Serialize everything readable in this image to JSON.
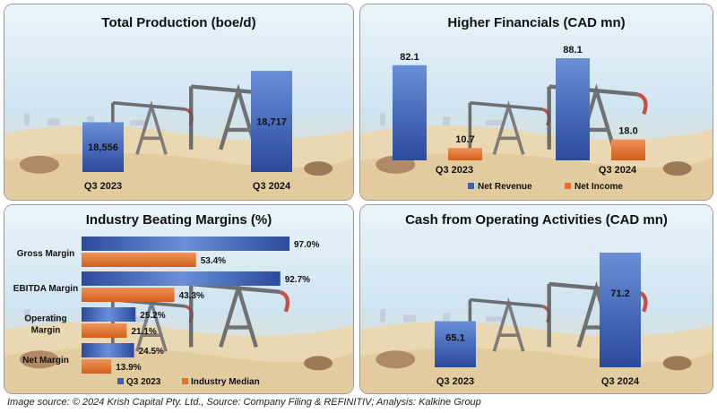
{
  "colors": {
    "blue": "#3d5fae",
    "blue_dark": "#2a4590",
    "orange": "#e0722c",
    "panel_bg": "#cfe3f1"
  },
  "panels": {
    "p1": {
      "title": "Total Production (boe/d)"
    },
    "p2": {
      "title": "Higher Financials (CAD mn)"
    },
    "p3": {
      "title": "Industry Beating Margins (%)"
    },
    "p4": {
      "title": "Cash from Operating Activities (CAD mn)"
    }
  },
  "footer": "Image source: © 2024 Krish Capital Pty. Ltd., Source: Company Filing & REFINITIV; Analysis: Kalkine Group",
  "chart_data": [
    {
      "type": "bar",
      "title": "Total Production (boe/d)",
      "categories": [
        "Q3 2023",
        "Q3 2024"
      ],
      "values": [
        18556,
        18717
      ],
      "value_labels": [
        "18,556",
        "18,717"
      ]
    },
    {
      "type": "bar",
      "title": "Higher Financials (CAD mn)",
      "categories": [
        "Q3 2023",
        "Q3 2024"
      ],
      "series": [
        {
          "name": "Net Revenue",
          "values": [
            82.1,
            88.1
          ],
          "labels": [
            "82.1",
            "88.1"
          ]
        },
        {
          "name": "Net Income",
          "values": [
            10.7,
            18.0
          ],
          "labels": [
            "10.7",
            "18.0"
          ]
        }
      ],
      "legend": "bottom"
    },
    {
      "type": "bar",
      "orientation": "horizontal",
      "title": "Industry Beating Margins (%)",
      "categories": [
        "Gross Margin",
        "EBITDA Margin",
        "Operating Margin",
        "Net Margin"
      ],
      "series": [
        {
          "name": "Q3 2023",
          "values": [
            97.0,
            92.7,
            25.2,
            24.5
          ],
          "labels": [
            "97.0%",
            "92.7%",
            "25.2%",
            "24.5%"
          ]
        },
        {
          "name": "Industry Median",
          "values": [
            53.4,
            43.3,
            21.1,
            13.9
          ],
          "labels": [
            "53.4%",
            "43.3%",
            "21.1%",
            "13.9%"
          ]
        }
      ],
      "legend": "bottom"
    },
    {
      "type": "bar",
      "title": "Cash from Operating Activities (CAD mn)",
      "categories": [
        "Q3 2023",
        "Q3 2024"
      ],
      "values": [
        65.1,
        71.2
      ],
      "value_labels": [
        "65.1",
        "71.2"
      ]
    }
  ]
}
